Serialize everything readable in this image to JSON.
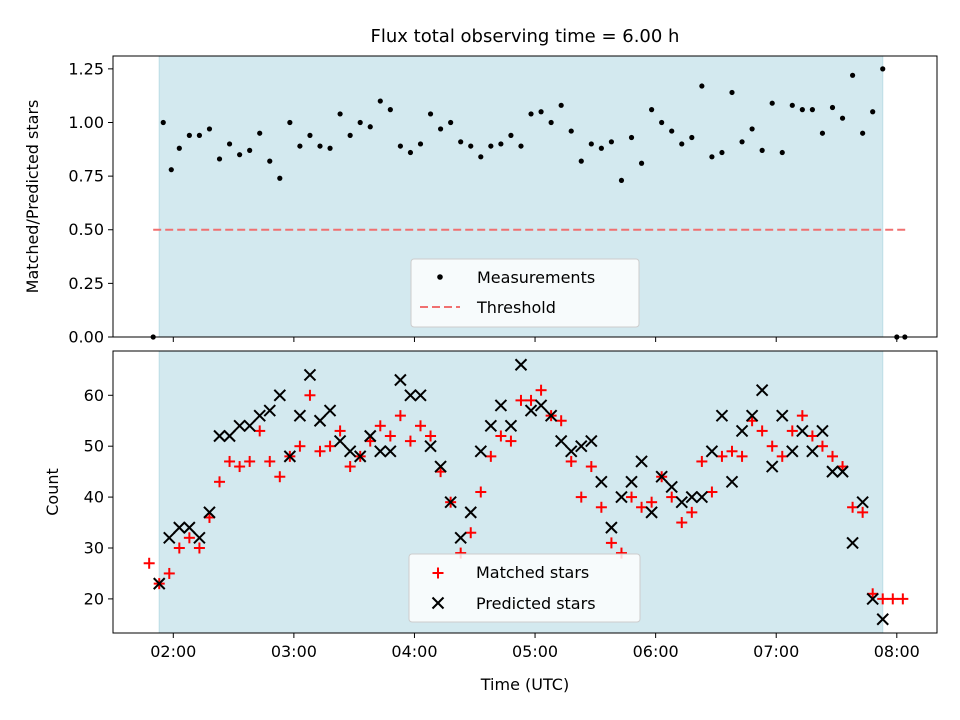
{
  "chart_data": [
    {
      "type": "scatter",
      "title": "Flux total observing time = 6.00 h",
      "xlabel": "",
      "ylabel": "Matched/Predicted stars",
      "xlim": [
        "01:30",
        "08:20"
      ],
      "ylim": [
        0,
        1.31
      ],
      "yticks": [
        "0.00",
        "0.25",
        "0.50",
        "0.75",
        "1.00",
        "1.25"
      ],
      "ytick_values": [
        0,
        0.25,
        0.5,
        0.75,
        1.0,
        1.25
      ],
      "observing_window": [
        "01:53",
        "07:53"
      ],
      "observing_window_color": "#d3e9ef",
      "legend_position": "lower center",
      "legend": [
        {
          "label": "Measurements",
          "marker": "dot",
          "color": "#000000"
        },
        {
          "label": "Threshold",
          "marker": "dashed-line",
          "color": "#f07070"
        }
      ],
      "threshold": {
        "value": 0.5,
        "x_range": [
          "01:50",
          "08:05"
        ]
      },
      "series": [
        {
          "name": "Measurements",
          "color": "#000000",
          "points": [
            [
              "01:50",
              0.0
            ],
            [
              "01:55",
              1.0
            ],
            [
              "01:59",
              0.78
            ],
            [
              "02:03",
              0.88
            ],
            [
              "02:08",
              0.94
            ],
            [
              "02:13",
              0.94
            ],
            [
              "02:18",
              0.97
            ],
            [
              "02:23",
              0.83
            ],
            [
              "02:28",
              0.9
            ],
            [
              "02:33",
              0.85
            ],
            [
              "02:38",
              0.87
            ],
            [
              "02:43",
              0.95
            ],
            [
              "02:48",
              0.82
            ],
            [
              "02:53",
              0.74
            ],
            [
              "02:58",
              1.0
            ],
            [
              "03:03",
              0.89
            ],
            [
              "03:08",
              0.94
            ],
            [
              "03:13",
              0.89
            ],
            [
              "03:18",
              0.88
            ],
            [
              "03:23",
              1.04
            ],
            [
              "03:28",
              0.94
            ],
            [
              "03:33",
              1.0
            ],
            [
              "03:38",
              0.98
            ],
            [
              "03:43",
              1.1
            ],
            [
              "03:48",
              1.06
            ],
            [
              "03:53",
              0.89
            ],
            [
              "03:58",
              0.86
            ],
            [
              "04:03",
              0.9
            ],
            [
              "04:08",
              1.04
            ],
            [
              "04:13",
              0.97
            ],
            [
              "04:18",
              1.0
            ],
            [
              "04:23",
              0.91
            ],
            [
              "04:28",
              0.89
            ],
            [
              "04:33",
              0.84
            ],
            [
              "04:38",
              0.89
            ],
            [
              "04:43",
              0.9
            ],
            [
              "04:48",
              0.94
            ],
            [
              "04:53",
              0.89
            ],
            [
              "04:58",
              1.04
            ],
            [
              "05:03",
              1.05
            ],
            [
              "05:08",
              1.0
            ],
            [
              "05:13",
              1.08
            ],
            [
              "05:18",
              0.96
            ],
            [
              "05:23",
              0.82
            ],
            [
              "05:28",
              0.9
            ],
            [
              "05:33",
              0.88
            ],
            [
              "05:38",
              0.91
            ],
            [
              "05:43",
              0.73
            ],
            [
              "05:48",
              0.93
            ],
            [
              "05:53",
              0.81
            ],
            [
              "05:58",
              1.06
            ],
            [
              "06:03",
              1.0
            ],
            [
              "06:08",
              0.96
            ],
            [
              "06:13",
              0.9
            ],
            [
              "06:18",
              0.93
            ],
            [
              "06:23",
              1.17
            ],
            [
              "06:28",
              0.84
            ],
            [
              "06:33",
              0.86
            ],
            [
              "06:38",
              1.14
            ],
            [
              "06:43",
              0.91
            ],
            [
              "06:48",
              0.97
            ],
            [
              "06:53",
              0.87
            ],
            [
              "06:58",
              1.09
            ],
            [
              "07:03",
              0.86
            ],
            [
              "07:08",
              1.08
            ],
            [
              "07:13",
              1.06
            ],
            [
              "07:18",
              1.06
            ],
            [
              "07:23",
              0.95
            ],
            [
              "07:28",
              1.07
            ],
            [
              "07:33",
              1.02
            ],
            [
              "07:38",
              1.22
            ],
            [
              "07:43",
              0.95
            ],
            [
              "07:48",
              1.05
            ],
            [
              "07:53",
              1.25
            ],
            [
              "08:00",
              0.0
            ],
            [
              "08:04",
              0.0
            ]
          ]
        }
      ]
    },
    {
      "type": "scatter",
      "title": "",
      "xlabel": "Time (UTC)",
      "ylabel": "Count",
      "xlim": [
        "01:30",
        "08:20"
      ],
      "ylim": [
        13.3,
        68.7
      ],
      "xticks": [
        "02:00",
        "03:00",
        "04:00",
        "05:00",
        "06:00",
        "07:00",
        "08:00"
      ],
      "yticks": [
        "20",
        "30",
        "40",
        "50",
        "60"
      ],
      "ytick_values": [
        20,
        30,
        40,
        50,
        60
      ],
      "observing_window": [
        "01:53",
        "07:53"
      ],
      "observing_window_color": "#d3e9ef",
      "legend_position": "lower center",
      "legend": [
        {
          "label": "Matched stars",
          "marker": "plus",
          "color": "#ff0000"
        },
        {
          "label": "Predicted stars",
          "marker": "x",
          "color": "#000000"
        }
      ],
      "series": [
        {
          "name": "Matched stars",
          "color": "#ff0000",
          "points": [
            [
              "01:48",
              27
            ],
            [
              "01:53",
              23
            ],
            [
              "01:58",
              25
            ],
            [
              "02:03",
              30
            ],
            [
              "02:08",
              32
            ],
            [
              "02:13",
              30
            ],
            [
              "02:18",
              36
            ],
            [
              "02:23",
              43
            ],
            [
              "02:28",
              47
            ],
            [
              "02:33",
              46
            ],
            [
              "02:38",
              47
            ],
            [
              "02:43",
              53
            ],
            [
              "02:48",
              47
            ],
            [
              "02:53",
              44
            ],
            [
              "02:58",
              48
            ],
            [
              "03:03",
              50
            ],
            [
              "03:08",
              60
            ],
            [
              "03:13",
              49
            ],
            [
              "03:18",
              50
            ],
            [
              "03:23",
              53
            ],
            [
              "03:28",
              46
            ],
            [
              "03:33",
              48
            ],
            [
              "03:38",
              51
            ],
            [
              "03:43",
              54
            ],
            [
              "03:48",
              52
            ],
            [
              "03:53",
              56
            ],
            [
              "03:58",
              51
            ],
            [
              "04:03",
              54
            ],
            [
              "04:08",
              52
            ],
            [
              "04:13",
              45
            ],
            [
              "04:18",
              39
            ],
            [
              "04:23",
              29
            ],
            [
              "04:28",
              33
            ],
            [
              "04:33",
              41
            ],
            [
              "04:38",
              48
            ],
            [
              "04:43",
              52
            ],
            [
              "04:48",
              51
            ],
            [
              "04:53",
              59
            ],
            [
              "04:58",
              59
            ],
            [
              "05:03",
              61
            ],
            [
              "05:08",
              56
            ],
            [
              "05:13",
              55
            ],
            [
              "05:18",
              47
            ],
            [
              "05:23",
              40
            ],
            [
              "05:28",
              46
            ],
            [
              "05:33",
              38
            ],
            [
              "05:38",
              31
            ],
            [
              "05:43",
              29
            ],
            [
              "05:48",
              40
            ],
            [
              "05:53",
              38
            ],
            [
              "05:58",
              39
            ],
            [
              "06:03",
              44
            ],
            [
              "06:08",
              40
            ],
            [
              "06:13",
              35
            ],
            [
              "06:18",
              37
            ],
            [
              "06:23",
              47
            ],
            [
              "06:28",
              41
            ],
            [
              "06:33",
              48
            ],
            [
              "06:38",
              49
            ],
            [
              "06:43",
              48
            ],
            [
              "06:48",
              55
            ],
            [
              "06:53",
              53
            ],
            [
              "06:58",
              50
            ],
            [
              "07:03",
              48
            ],
            [
              "07:08",
              53
            ],
            [
              "07:13",
              56
            ],
            [
              "07:18",
              52
            ],
            [
              "07:23",
              50
            ],
            [
              "07:28",
              48
            ],
            [
              "07:33",
              46
            ],
            [
              "07:38",
              38
            ],
            [
              "07:43",
              37
            ],
            [
              "07:48",
              21
            ],
            [
              "07:53",
              20
            ],
            [
              "07:58",
              20
            ],
            [
              "08:03",
              20
            ]
          ]
        },
        {
          "name": "Predicted stars",
          "color": "#000000",
          "points": [
            [
              "01:53",
              23
            ],
            [
              "01:58",
              32
            ],
            [
              "02:03",
              34
            ],
            [
              "02:08",
              34
            ],
            [
              "02:13",
              32
            ],
            [
              "02:18",
              37
            ],
            [
              "02:23",
              52
            ],
            [
              "02:28",
              52
            ],
            [
              "02:33",
              54
            ],
            [
              "02:38",
              54
            ],
            [
              "02:43",
              56
            ],
            [
              "02:48",
              57
            ],
            [
              "02:53",
              60
            ],
            [
              "02:58",
              48
            ],
            [
              "03:03",
              56
            ],
            [
              "03:08",
              64
            ],
            [
              "03:13",
              55
            ],
            [
              "03:18",
              57
            ],
            [
              "03:23",
              51
            ],
            [
              "03:28",
              49
            ],
            [
              "03:33",
              48
            ],
            [
              "03:38",
              52
            ],
            [
              "03:43",
              49
            ],
            [
              "03:48",
              49
            ],
            [
              "03:53",
              63
            ],
            [
              "03:58",
              60
            ],
            [
              "04:03",
              60
            ],
            [
              "04:08",
              50
            ],
            [
              "04:13",
              46
            ],
            [
              "04:18",
              39
            ],
            [
              "04:23",
              32
            ],
            [
              "04:28",
              37
            ],
            [
              "04:33",
              49
            ],
            [
              "04:38",
              54
            ],
            [
              "04:43",
              58
            ],
            [
              "04:48",
              54
            ],
            [
              "04:53",
              66
            ],
            [
              "04:58",
              57
            ],
            [
              "05:03",
              58
            ],
            [
              "05:08",
              56
            ],
            [
              "05:13",
              51
            ],
            [
              "05:18",
              49
            ],
            [
              "05:23",
              50
            ],
            [
              "05:28",
              51
            ],
            [
              "05:33",
              43
            ],
            [
              "05:38",
              34
            ],
            [
              "05:43",
              40
            ],
            [
              "05:48",
              43
            ],
            [
              "05:53",
              47
            ],
            [
              "05:58",
              37
            ],
            [
              "06:03",
              44
            ],
            [
              "06:08",
              42
            ],
            [
              "06:13",
              39
            ],
            [
              "06:18",
              40
            ],
            [
              "06:23",
              40
            ],
            [
              "06:28",
              49
            ],
            [
              "06:33",
              56
            ],
            [
              "06:38",
              43
            ],
            [
              "06:43",
              53
            ],
            [
              "06:48",
              56
            ],
            [
              "06:53",
              61
            ],
            [
              "06:58",
              46
            ],
            [
              "07:03",
              56
            ],
            [
              "07:08",
              49
            ],
            [
              "07:13",
              53
            ],
            [
              "07:18",
              49
            ],
            [
              "07:23",
              53
            ],
            [
              "07:28",
              45
            ],
            [
              "07:33",
              45
            ],
            [
              "07:38",
              31
            ],
            [
              "07:43",
              39
            ],
            [
              "07:48",
              20
            ],
            [
              "07:53",
              16
            ]
          ]
        }
      ]
    }
  ]
}
